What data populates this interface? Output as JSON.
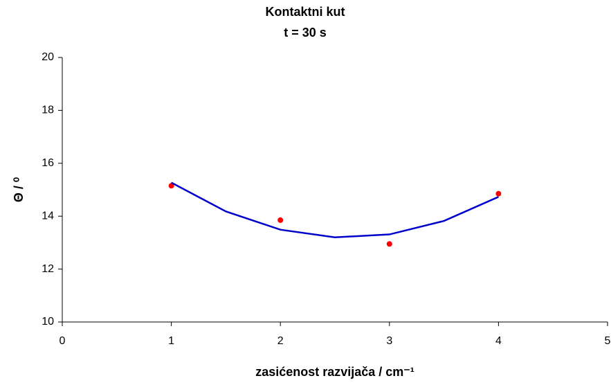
{
  "chart_data": {
    "type": "scatter",
    "title": [
      "Kontaktni kut",
      "t = 30 s"
    ],
    "x_label": "zasićenost razvijača / cm⁻¹",
    "y_label": "Θ / ⁰",
    "xlim": [
      0,
      5
    ],
    "xticks": [
      0,
      1,
      2,
      3,
      4,
      5
    ],
    "ylim": [
      10,
      20
    ],
    "yticks": [
      10,
      12,
      14,
      16,
      18,
      20
    ],
    "grid": false,
    "series": [
      {
        "kind": "points",
        "color": "#ff0000",
        "x": [
          1,
          2,
          3,
          4
        ],
        "values": [
          15.15,
          13.85,
          12.95,
          14.85
        ]
      },
      {
        "kind": "line",
        "color": "#0000cc",
        "x": [
          1,
          1.5,
          2,
          2.5,
          3,
          3.5,
          4
        ],
        "values": [
          15.27,
          14.18,
          13.49,
          13.2,
          13.31,
          13.82,
          14.73
        ]
      }
    ]
  }
}
